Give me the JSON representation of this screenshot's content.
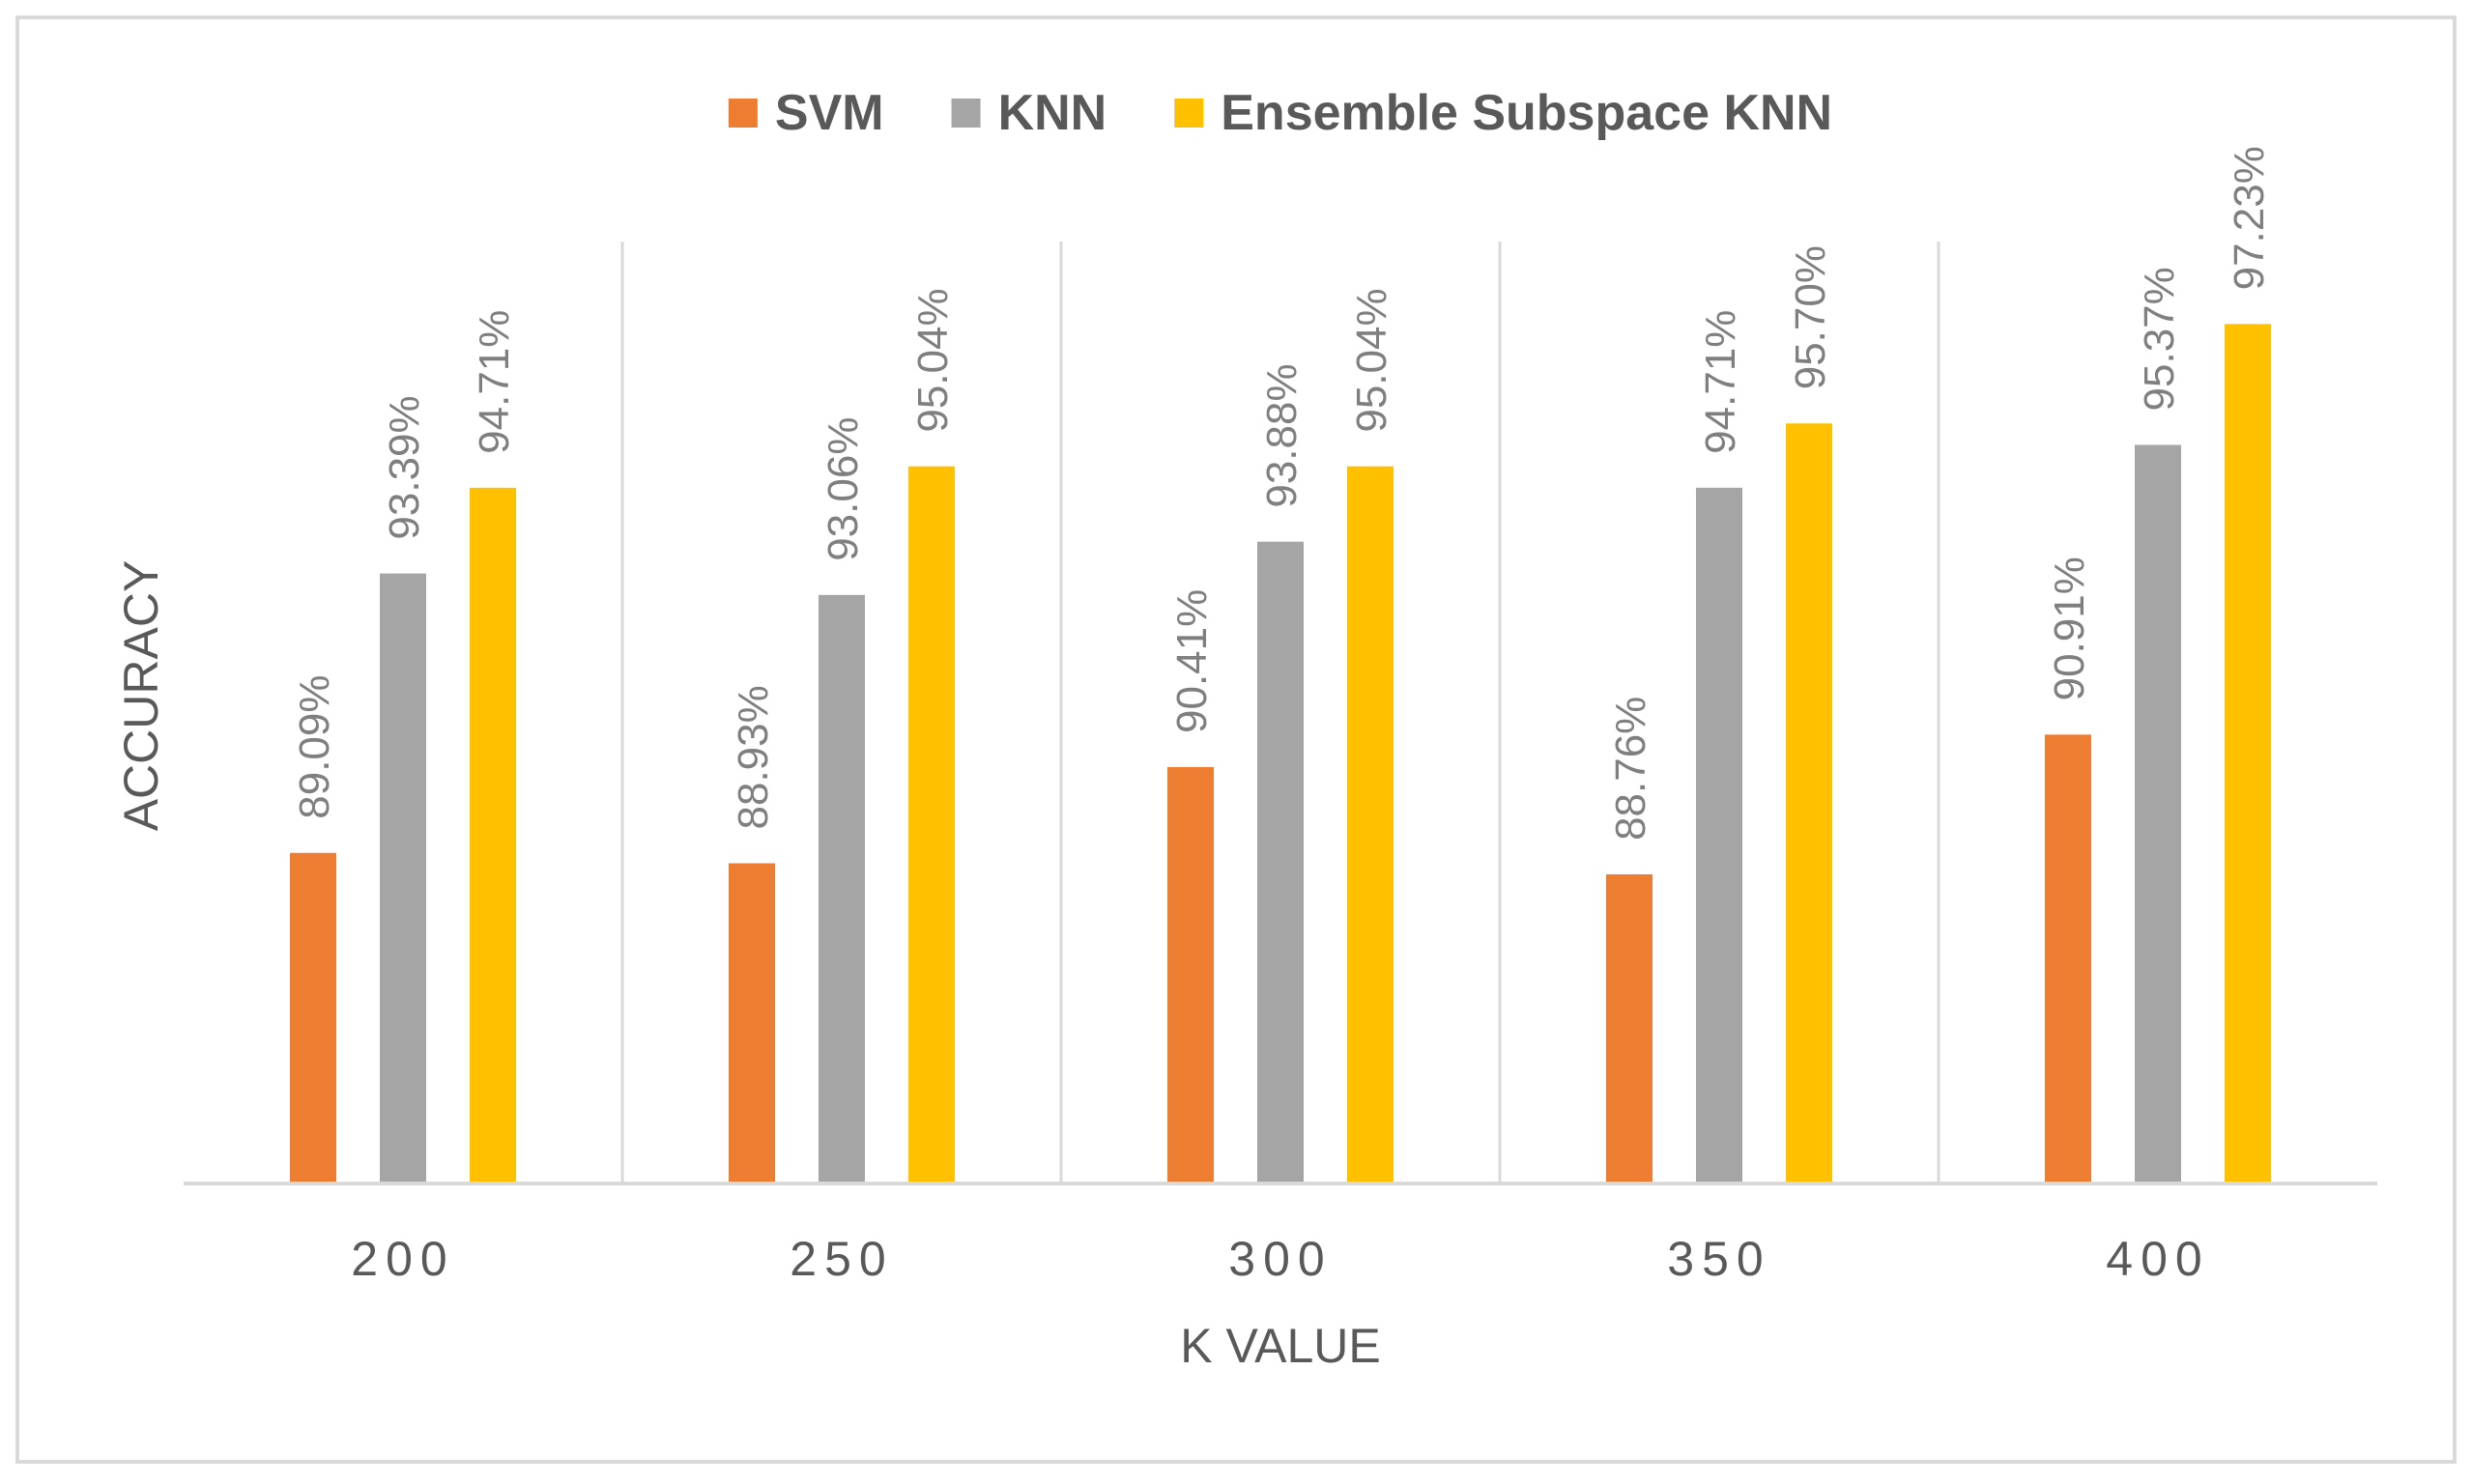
{
  "chart_data": {
    "type": "bar",
    "title": "",
    "xlabel": "K VALUE",
    "ylabel": "ACCURACY",
    "categories": [
      "200",
      "250",
      "300",
      "350",
      "400"
    ],
    "series": [
      {
        "name": "SVM",
        "color": "#ED7D31",
        "values": [
          89.09,
          88.93,
          90.41,
          88.76,
          90.91
        ],
        "labels": [
          "89.09%",
          "88.93%",
          "90.41%",
          "88.76%",
          "90.91%"
        ]
      },
      {
        "name": "KNN",
        "color": "#A5A5A5",
        "values": [
          93.39,
          93.06,
          93.88,
          94.71,
          95.37
        ],
        "labels": [
          "93.39%",
          "93.06%",
          "93.88%",
          "94.71%",
          "95.37%"
        ]
      },
      {
        "name": "Ensemble Subspace KNN",
        "color": "#FFC000",
        "values": [
          94.71,
          95.04,
          95.04,
          95.7,
          97.23
        ],
        "labels": [
          "94.71%",
          "95.04%",
          "95.04%",
          "95.70%",
          "97.23%"
        ]
      }
    ],
    "ylim": [
      84,
      98.5
    ],
    "grid": false,
    "legend_position": "top"
  }
}
